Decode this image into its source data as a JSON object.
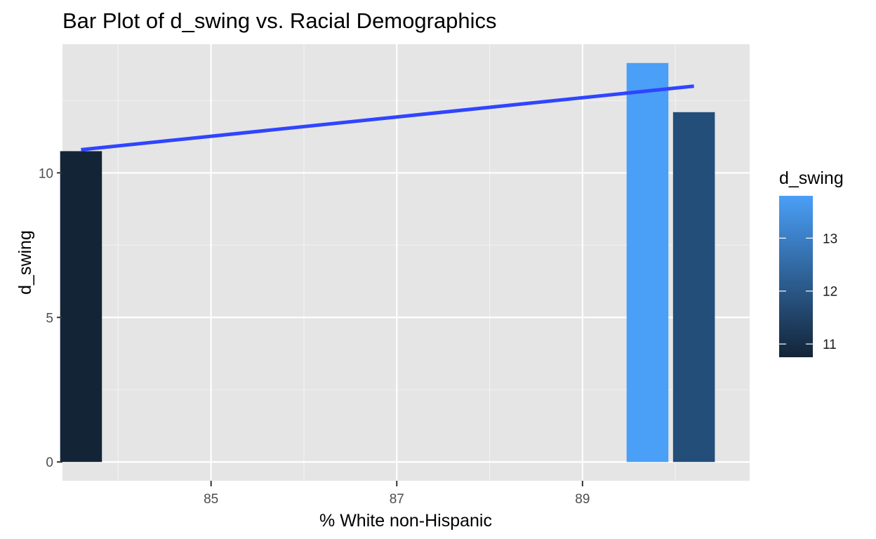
{
  "chart_data": {
    "type": "bar",
    "title": "Bar Plot of d_swing vs. Racial Demographics",
    "xlabel": "% White non-Hispanic",
    "ylabel": "d_swing",
    "xlim": [
      83.4,
      90.8
    ],
    "ylim": [
      -0.65,
      14.45
    ],
    "x_ticks": [
      85,
      87,
      89
    ],
    "y_ticks": [
      0,
      5,
      10
    ],
    "grid": true,
    "bars": [
      {
        "x": 83.6,
        "value": 10.75,
        "fill": "#132437"
      },
      {
        "x": 89.7,
        "value": 13.8,
        "fill": "#4a9ff7"
      },
      {
        "x": 90.2,
        "value": 12.1,
        "fill": "#224e79"
      }
    ],
    "bar_width": 0.45,
    "trend_line": {
      "x": [
        83.6,
        90.2
      ],
      "y": [
        10.8,
        13.0
      ],
      "color": "#3045ff"
    },
    "legend": {
      "title": "d_swing",
      "position": "right",
      "range": [
        10.75,
        13.8
      ],
      "ticks": [
        11,
        12,
        13
      ],
      "colors": [
        "#132437",
        "#4a9ff7"
      ]
    }
  }
}
